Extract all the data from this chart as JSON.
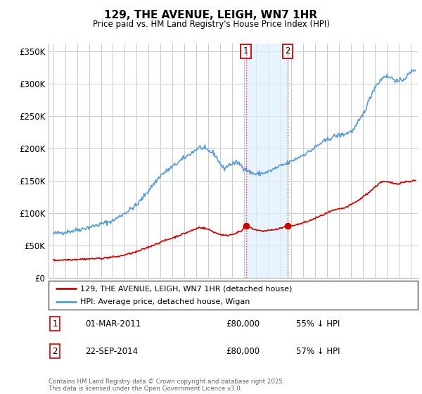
{
  "title": "129, THE AVENUE, LEIGH, WN7 1HR",
  "subtitle": "Price paid vs. HM Land Registry's House Price Index (HPI)",
  "yticks": [
    0,
    50000,
    100000,
    150000,
    200000,
    250000,
    300000,
    350000
  ],
  "ytick_labels": [
    "£0",
    "£50K",
    "£100K",
    "£150K",
    "£200K",
    "£250K",
    "£300K",
    "£350K"
  ],
  "hpi_color": "#5b9bd5",
  "price_color": "#cc0000",
  "marker_color": "#cc0000",
  "vline_color": "#dd3333",
  "shade_color": "#ddeeff",
  "grid_color": "#cccccc",
  "bg_color": "#ffffff",
  "annotation1": {
    "label": "1",
    "date": "01-MAR-2011",
    "price": "£80,000",
    "pct": "55% ↓ HPI"
  },
  "annotation2": {
    "label": "2",
    "date": "22-SEP-2014",
    "price": "£80,000",
    "pct": "57% ↓ HPI"
  },
  "footer": "Contains HM Land Registry data © Crown copyright and database right 2025.\nThis data is licensed under the Open Government Licence v3.0.",
  "legend_line1": "129, THE AVENUE, LEIGH, WN7 1HR (detached house)",
  "legend_line2": "HPI: Average price, detached house, Wigan"
}
